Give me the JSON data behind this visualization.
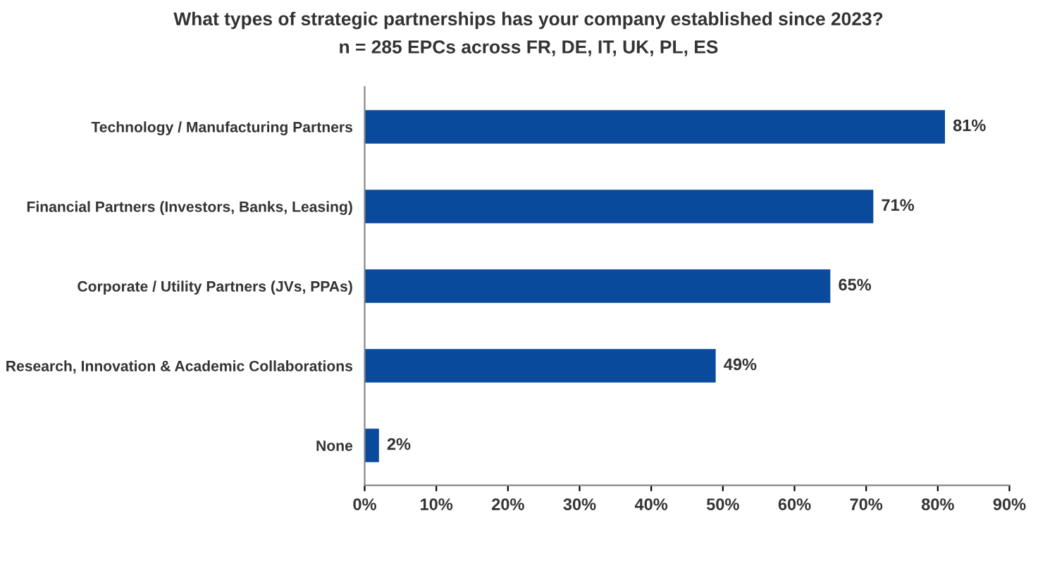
{
  "chart_data": {
    "type": "bar",
    "orientation": "horizontal",
    "title": "What types of strategic partnerships has your company established since 2023?",
    "subtitle": "n = 285 EPCs across FR, DE, IT, UK, PL, ES",
    "categories": [
      "Technology / Manufacturing Partners",
      "Financial Partners (Investors, Banks, Leasing)",
      "Corporate / Utility Partners (JVs, PPAs)",
      "Research, Innovation & Academic Collaborations",
      "None"
    ],
    "values": [
      81,
      71,
      65,
      49,
      2
    ],
    "value_labels": [
      "81%",
      "71%",
      "65%",
      "49%",
      "2%"
    ],
    "color": "#0a4a9c",
    "xlim": [
      0,
      90
    ],
    "xticks": [
      {
        "value": 0,
        "label": "0%"
      },
      {
        "value": 10,
        "label": "10%"
      },
      {
        "value": 20,
        "label": "20%"
      },
      {
        "value": 30,
        "label": "30%"
      },
      {
        "value": 40,
        "label": "40%"
      },
      {
        "value": 50,
        "label": "50%"
      },
      {
        "value": 60,
        "label": "60%"
      },
      {
        "value": 70,
        "label": "70%"
      },
      {
        "value": 80,
        "label": "80%"
      },
      {
        "value": 90,
        "label": "90%"
      }
    ],
    "grid": false,
    "legend": false
  }
}
